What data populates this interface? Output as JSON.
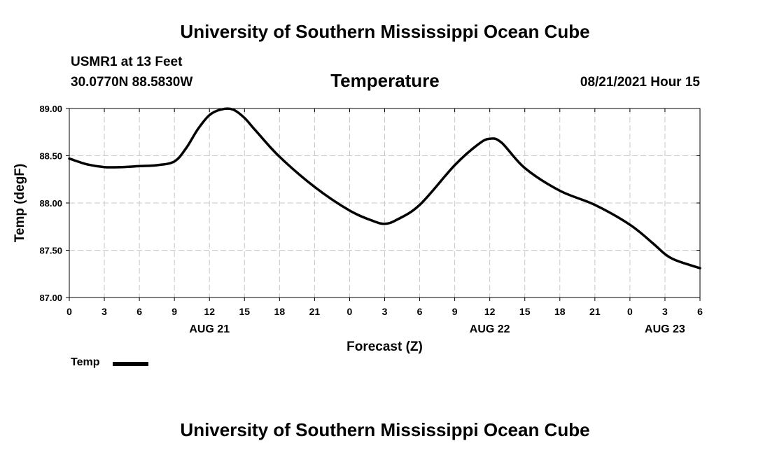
{
  "header": {
    "title": "University of Southern Mississippi Ocean Cube",
    "footer_title": "University of Southern Mississippi Ocean Cube",
    "station": "USMR1 at 13 Feet",
    "coordinates": "30.0770N  88.5830W",
    "chart_title": "Temperature",
    "datetime": "08/21/2021 Hour 15"
  },
  "legend": {
    "label": "Temp"
  },
  "colors": {
    "line": "#000000",
    "grid": "#c8c8c8",
    "background": "#ffffff"
  },
  "chart_data": {
    "type": "line",
    "title": "Temperature",
    "xlabel": "Forecast (Z)",
    "ylabel": "Temp (degF)",
    "xlim": [
      0,
      54
    ],
    "ylim": [
      87.0,
      89.0
    ],
    "y_ticks": [
      "87.00",
      "87.50",
      "88.00",
      "88.50",
      "89.00"
    ],
    "x_ticks": [
      {
        "x": 0,
        "label": "0"
      },
      {
        "x": 3,
        "label": "3"
      },
      {
        "x": 6,
        "label": "6"
      },
      {
        "x": 9,
        "label": "9"
      },
      {
        "x": 12,
        "label": "12"
      },
      {
        "x": 15,
        "label": "15"
      },
      {
        "x": 18,
        "label": "18"
      },
      {
        "x": 21,
        "label": "21"
      },
      {
        "x": 24,
        "label": "0"
      },
      {
        "x": 27,
        "label": "3"
      },
      {
        "x": 30,
        "label": "6"
      },
      {
        "x": 33,
        "label": "9"
      },
      {
        "x": 36,
        "label": "12"
      },
      {
        "x": 39,
        "label": "15"
      },
      {
        "x": 42,
        "label": "18"
      },
      {
        "x": 45,
        "label": "21"
      },
      {
        "x": 48,
        "label": "0"
      },
      {
        "x": 51,
        "label": "3"
      },
      {
        "x": 54,
        "label": "6"
      }
    ],
    "date_labels": [
      {
        "x": 12,
        "label": "AUG 21"
      },
      {
        "x": 36,
        "label": "AUG 22"
      },
      {
        "x": 51,
        "label": "AUG 23"
      }
    ],
    "grid": true,
    "legend_position": "bottom-left",
    "series": [
      {
        "name": "Temp",
        "x": [
          0,
          1.5,
          3,
          4.5,
          6,
          7.5,
          9,
          10,
          11,
          12,
          13,
          14,
          15,
          16,
          18,
          21,
          24,
          26,
          27,
          28,
          30,
          33,
          35,
          36,
          37,
          39,
          42,
          45,
          48,
          50,
          51,
          52,
          54
        ],
        "values": [
          88.47,
          88.41,
          88.38,
          88.38,
          88.39,
          88.4,
          88.44,
          88.58,
          88.78,
          88.93,
          88.99,
          88.99,
          88.9,
          88.76,
          88.49,
          88.17,
          87.92,
          87.81,
          87.78,
          87.82,
          87.98,
          88.4,
          88.62,
          88.68,
          88.64,
          88.37,
          88.13,
          87.98,
          87.77,
          87.57,
          87.46,
          87.39,
          87.31
        ]
      }
    ]
  }
}
